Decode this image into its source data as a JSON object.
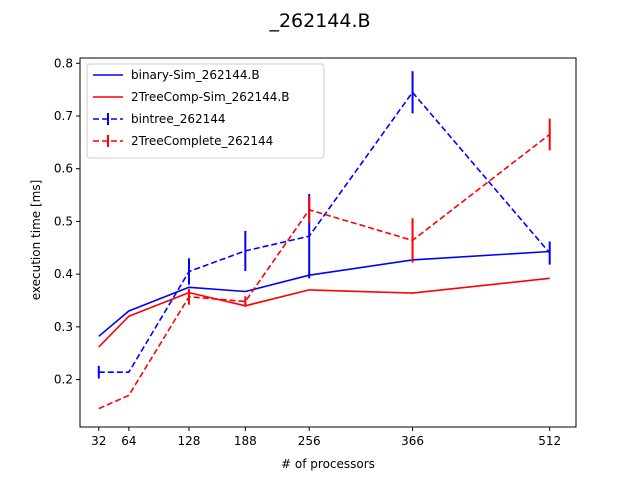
{
  "chart_data": {
    "type": "line",
    "title": "_262144.B",
    "xlabel": "# of processors",
    "ylabel": "execution time [ms]",
    "x": [
      32,
      64,
      128,
      188,
      256,
      366,
      512
    ],
    "xticks": [
      "32",
      "64",
      "128",
      "188",
      "256",
      "366",
      "512"
    ],
    "xlim": [
      12,
      540
    ],
    "ylim": [
      0.11,
      0.81
    ],
    "yticks": [
      "0.2",
      "0.3",
      "0.4",
      "0.5",
      "0.6",
      "0.7",
      "0.8"
    ],
    "grid": false,
    "legend_position": "top-left",
    "series": [
      {
        "name": "binary-Sim_262144.B",
        "color": "#0000ff",
        "style": "solid",
        "values": [
          0.282,
          0.33,
          0.375,
          0.367,
          0.398,
          0.427,
          0.443
        ],
        "errors": null
      },
      {
        "name": "2TreeComp-Sim_262144.B",
        "color": "#ff0000",
        "style": "solid",
        "values": [
          0.262,
          0.32,
          0.365,
          0.34,
          0.37,
          0.364,
          0.392
        ],
        "errors": null
      },
      {
        "name": "bintree_262144",
        "color": "#0000ff",
        "style": "dashed",
        "values": [
          0.214,
          0.214,
          0.405,
          0.444,
          0.472,
          0.745,
          0.44
        ],
        "errors": [
          0.012,
          0.0,
          0.025,
          0.038,
          0.08,
          0.04,
          0.022
        ]
      },
      {
        "name": "2TreeComplete_262144",
        "color": "#ff0000",
        "style": "dashed",
        "values": [
          0.145,
          0.17,
          0.357,
          0.348,
          0.522,
          0.464,
          0.665
        ],
        "errors": [
          0.0,
          0.0,
          0.015,
          0.01,
          0.025,
          0.042,
          0.03
        ]
      }
    ]
  }
}
